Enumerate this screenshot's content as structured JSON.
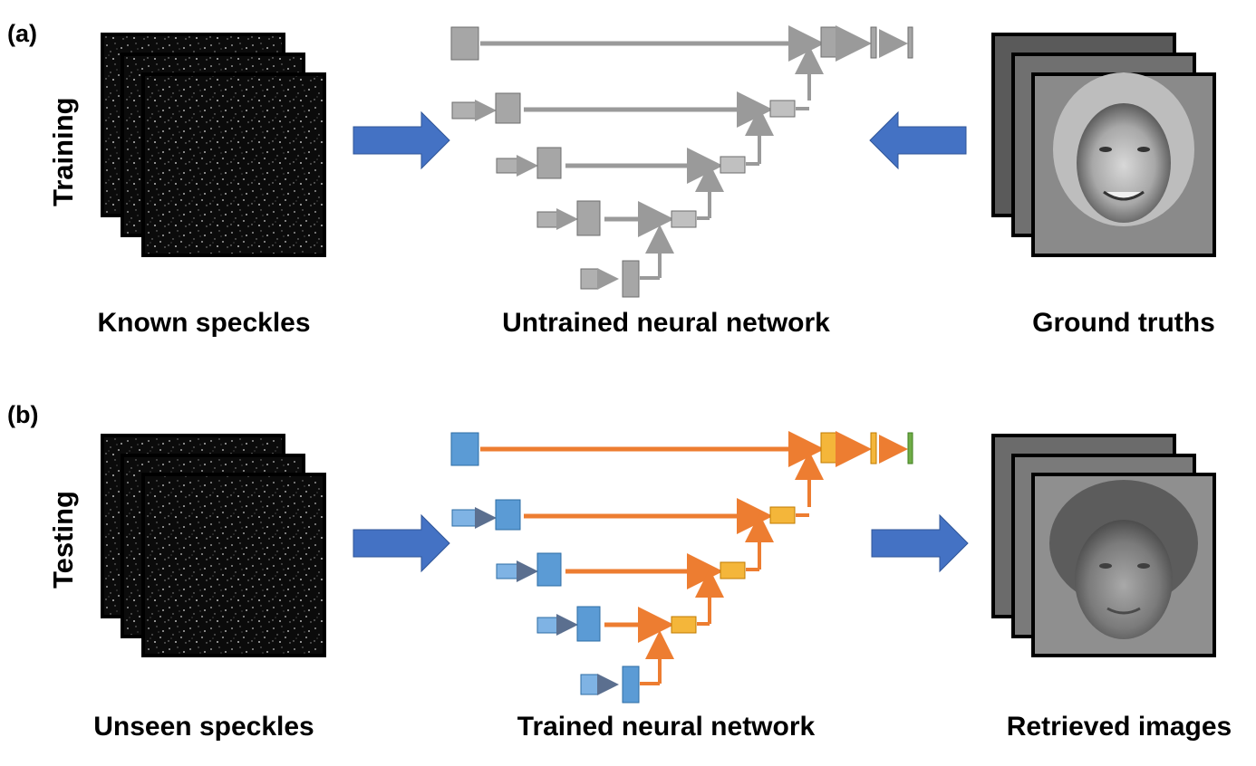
{
  "panel_a": {
    "label": "(a)",
    "side_label": "Training",
    "captions": {
      "left": "Known speckles",
      "middle": "Untrained neural network",
      "right": "Ground truths"
    }
  },
  "panel_b": {
    "label": "(b)",
    "side_label": "Testing",
    "captions": {
      "left": "Unseen speckles",
      "middle": "Trained neural network",
      "right": "Retrieved images"
    }
  },
  "colors": {
    "arrow_blue": "#4472C4",
    "network_gray": "#9a9a9a",
    "encoder_blue": "#5b9bd5",
    "decoder_orange": "#ed7d31",
    "decoder_yellow": "#f4b63a",
    "output_green": "#70ad47"
  }
}
